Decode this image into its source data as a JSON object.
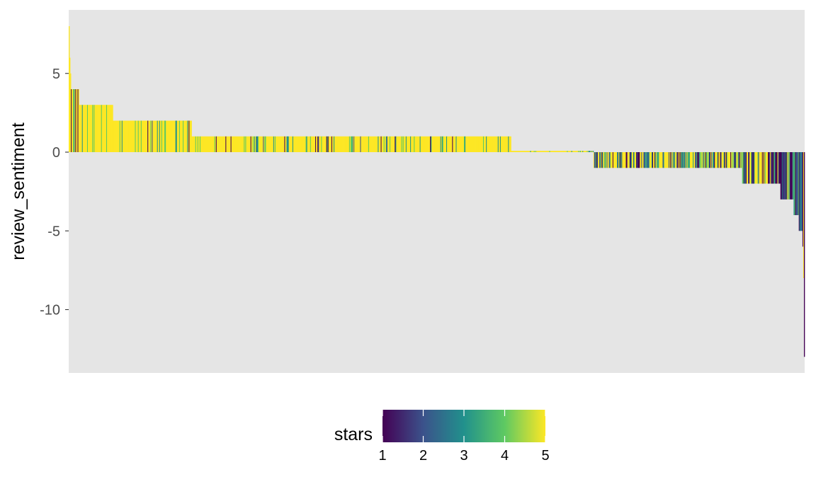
{
  "chart_data": {
    "type": "bar",
    "title": "",
    "xlabel": "",
    "ylabel": "review_sentiment",
    "ylim": [
      -14,
      9
    ],
    "y_ticks": [
      {
        "value": 5,
        "label": "5"
      },
      {
        "value": 0,
        "label": "0"
      },
      {
        "value": -5,
        "label": "-5"
      },
      {
        "value": -10,
        "label": "-10"
      }
    ],
    "x_ticks_shown": false,
    "grid": false,
    "panel_background": "#e5e5e5",
    "n_reviews": 1000,
    "bars_sorted": "descending by review_sentiment",
    "fill_variable": "stars",
    "segments": [
      {
        "from": 0,
        "to": 1,
        "sentiment": 8
      },
      {
        "from": 1,
        "to": 2,
        "sentiment": 6
      },
      {
        "from": 2,
        "to": 3,
        "sentiment": 5
      },
      {
        "from": 3,
        "to": 6,
        "sentiment": 4
      },
      {
        "from": 6,
        "to": 14,
        "sentiment": 4
      },
      {
        "from": 14,
        "to": 60,
        "sentiment": 3
      },
      {
        "from": 60,
        "to": 167,
        "sentiment": 2
      },
      {
        "from": 167,
        "to": 601,
        "sentiment": 1
      },
      {
        "from": 601,
        "to": 713,
        "sentiment": 0
      },
      {
        "from": 713,
        "to": 915,
        "sentiment": -1
      },
      {
        "from": 915,
        "to": 967,
        "sentiment": -2
      },
      {
        "from": 967,
        "to": 985,
        "sentiment": -3
      },
      {
        "from": 985,
        "to": 992,
        "sentiment": -4
      },
      {
        "from": 992,
        "to": 997,
        "sentiment": -5
      },
      {
        "from": 997,
        "to": 998,
        "sentiment": -6
      },
      {
        "from": 998,
        "to": 999,
        "sentiment": -8
      },
      {
        "from": 999,
        "to": 1000,
        "sentiment": -13
      }
    ],
    "legend": {
      "title": "stars",
      "position": "bottom",
      "type": "colorbar",
      "min": 1,
      "max": 5,
      "ticks": [
        {
          "value": 1,
          "label": "1"
        },
        {
          "value": 2,
          "label": "2"
        },
        {
          "value": 3,
          "label": "3"
        },
        {
          "value": 4,
          "label": "4"
        },
        {
          "value": 5,
          "label": "5"
        }
      ],
      "palette": "viridis",
      "colors": [
        "#440154",
        "#3b528b",
        "#21918c",
        "#5ec962",
        "#fde725"
      ]
    }
  }
}
